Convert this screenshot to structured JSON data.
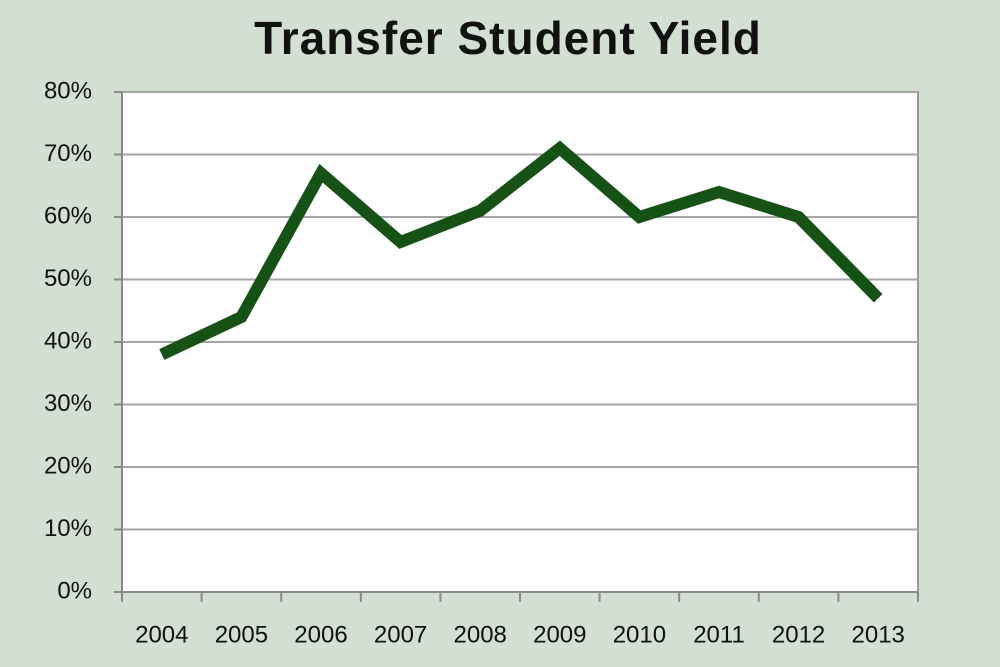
{
  "chart_data": {
    "type": "line",
    "title": "Transfer Student Yield",
    "categories": [
      "2004",
      "2005",
      "2006",
      "2007",
      "2008",
      "2009",
      "2010",
      "2011",
      "2012",
      "2013"
    ],
    "values": [
      38,
      44,
      67,
      56,
      61,
      71,
      60,
      64,
      60,
      47
    ],
    "color": "#165216",
    "ylim": [
      0,
      80
    ],
    "yticks": [
      {
        "value": 0,
        "label": "0%"
      },
      {
        "value": 10,
        "label": "10%"
      },
      {
        "value": 20,
        "label": "20%"
      },
      {
        "value": 30,
        "label": "30%"
      },
      {
        "value": 40,
        "label": "40%"
      },
      {
        "value": 50,
        "label": "50%"
      },
      {
        "value": 60,
        "label": "60%"
      },
      {
        "value": 70,
        "label": "70%"
      },
      {
        "value": 80,
        "label": "80%"
      }
    ],
    "grid": true
  }
}
